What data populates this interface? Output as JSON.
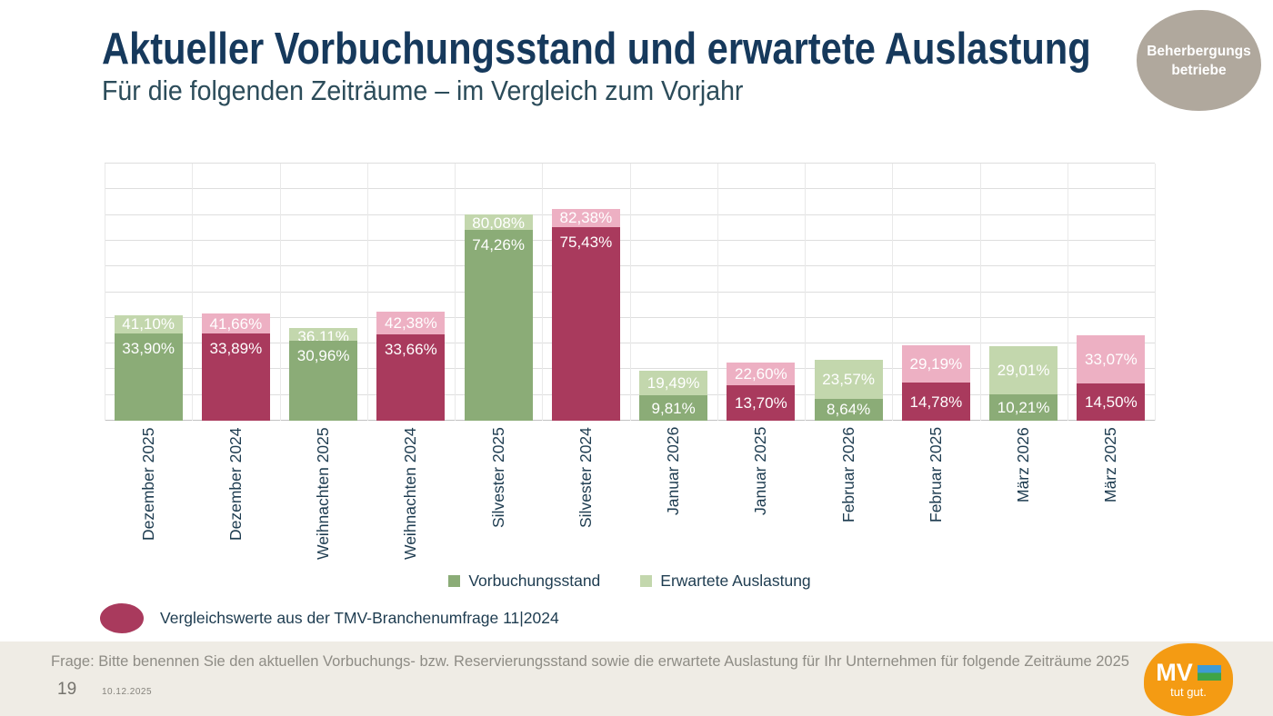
{
  "header": {
    "title": "Aktueller Vorbuchungsstand und erwartete Auslastung",
    "subtitle": "Für die folgenden Zeiträume – im Vergleich zum Vorjahr",
    "badge": {
      "line1": "Beherbergungs",
      "line2": "betriebe"
    }
  },
  "chart_data": {
    "type": "bar",
    "categories": [
      "Dezember 2025",
      "Dezember 2024",
      "Weihnachten 2025",
      "Weihnachten 2024",
      "Silvester 2025",
      "Silvester 2024",
      "Januar 2026",
      "Januar 2025",
      "Februar 2026",
      "Februar 2025",
      "März 2026",
      "März 2025"
    ],
    "series": [
      {
        "name": "Vorbuchungsstand",
        "values": [
          33.9,
          33.89,
          30.96,
          33.66,
          74.26,
          75.43,
          9.81,
          13.7,
          8.64,
          14.78,
          10.21,
          14.5
        ]
      },
      {
        "name": "Erwartete Auslastung",
        "values": [
          41.1,
          41.66,
          36.11,
          42.38,
          80.08,
          82.38,
          19.49,
          22.6,
          23.57,
          29.19,
          29.01,
          33.07
        ]
      }
    ],
    "value_labels": {
      "vorbuchungsstand": [
        "33,90%",
        "33,89%",
        "30,96%",
        "33,66%",
        "74,26%",
        "75,43%",
        "9,81%",
        "13,70%",
        "8,64%",
        "14,78%",
        "10,21%",
        "14,50%"
      ],
      "erwartete_auslastung": [
        "41,10%",
        "41,66%",
        "36,11%",
        "42,38%",
        "80,08%",
        "82,38%",
        "19,49%",
        "22,60%",
        "23,57%",
        "29,19%",
        "29,01%",
        "33,07%"
      ]
    },
    "bar_scheme": [
      "current",
      "comparison",
      "current",
      "comparison",
      "current",
      "comparison",
      "current",
      "comparison",
      "current",
      "comparison",
      "current",
      "comparison"
    ],
    "ylim": [
      0,
      100
    ],
    "grid_step_percent": 10,
    "grid": "horizontal lines every 10%, vertical category separators, no y-axis tick labels",
    "legend_position": "bottom-center",
    "legend": [
      {
        "label": "Vorbuchungsstand",
        "color": "#8bac77"
      },
      {
        "label": "Erwartete Auslastung",
        "color": "#c3d7ad"
      }
    ]
  },
  "comparison_note": {
    "text": "Vergleichswerte aus der TMV-Branchenumfrage 11|2024",
    "marker_color": "#a93a5d"
  },
  "footer": {
    "question": "Frage: Bitte benennen Sie den aktuellen Vorbuchungs- bzw. Reservierungsstand sowie die erwartete Auslastung für Ihr Unternehmen für folgende Zeiträume 2025",
    "page_number": "19",
    "date": "10.12.2025"
  },
  "logo": {
    "text": "MV",
    "tagline": "tut gut."
  },
  "colors": {
    "current_dark": "#8bac77",
    "current_light": "#c3d7ad",
    "comparison_dark": "#a93a5d",
    "comparison_light": "#edb0c3",
    "title": "#16395c",
    "badge_bg": "#b0a89d",
    "logo_orange": "#f49b13"
  }
}
